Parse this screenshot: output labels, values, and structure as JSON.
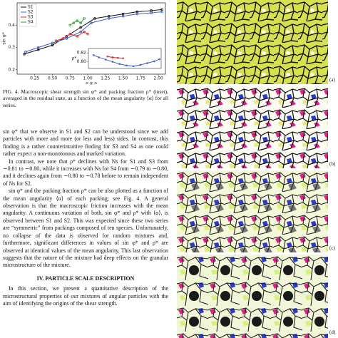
{
  "figure": {
    "chart": {
      "type": "line",
      "xlabel": "< α >",
      "ylabel": "sin φ*",
      "xlim": [
        0,
        2.1
      ],
      "ylim": [
        0.18,
        0.5
      ],
      "xticks": [
        0.25,
        {
          "value": 0.5,
          "label": "0.50"
        },
        0.75,
        {
          "value": 1,
          "label": "1.00"
        },
        1.25,
        {
          "value": 1.5,
          "label": "1.50"
        },
        1.75,
        {
          "value": 2,
          "label": "2.00"
        }
      ],
      "yticks": [
        0.2,
        0.3,
        0.4
      ],
      "series": [
        {
          "name": "S1",
          "color": "#111111",
          "x": [
            0.1,
            0.3,
            0.5,
            0.7,
            0.9,
            1.1,
            1.3,
            1.5,
            1.7,
            1.9,
            2.05
          ],
          "values": [
            0.27,
            0.29,
            0.31,
            0.35,
            0.39,
            0.43,
            0.44,
            0.45,
            0.46,
            0.465,
            0.47
          ]
        },
        {
          "name": "S2",
          "color": "#3b5fc9",
          "x": [
            0.12,
            0.3,
            0.5,
            0.7,
            0.9,
            1.05,
            1.3,
            1.5,
            1.7,
            1.9,
            2.05
          ],
          "values": [
            0.28,
            0.3,
            0.32,
            0.34,
            0.37,
            0.41,
            0.43,
            0.44,
            0.45,
            0.455,
            0.46
          ]
        },
        {
          "name": "S3",
          "color": "#d62728",
          "x": [
            0.55,
            0.65,
            0.75,
            0.85,
            0.95,
            1.0
          ],
          "values": [
            0.33,
            0.34,
            0.36,
            0.35,
            0.37,
            0.36
          ]
        },
        {
          "name": "S4",
          "color": "#2ca02c",
          "x": [
            0.75,
            0.8,
            0.85,
            0.9,
            0.95
          ],
          "values": [
            0.4,
            0.41,
            0.42,
            0.41,
            0.43
          ]
        }
      ],
      "inset": {
        "type": "line",
        "ylabel": "ρ*",
        "xlim": [
          0,
          2.1
        ],
        "ylim": [
          0.785,
          0.83
        ],
        "yticks": [
          {
            "value": 0.8,
            "label": "0.80"
          },
          0.82
        ],
        "series": [
          {
            "color": "#3b5fc9",
            "x": [
              0.15,
              0.3,
              0.5,
              0.7,
              0.9,
              1.1,
              1.3,
              1.5,
              1.7,
              1.9,
              2.05
            ],
            "values": [
              0.815,
              0.81,
              0.805,
              0.8,
              0.795,
              0.792,
              0.79,
              0.793,
              0.797,
              0.801,
              0.806
            ]
          },
          {
            "color": "#d62728",
            "x": [
              0.55,
              0.7,
              0.85,
              1.0
            ],
            "values": [
              0.812,
              0.81,
              0.809,
              0.808
            ]
          }
        ]
      }
    },
    "caption": "FIG. 4. Macroscopic shear strength sin φ* and packing fraction ρ* (inset), averaged in the residual state, as a function of the mean angularity ⟨α⟩ for all series."
  },
  "paragraphs": [
    "sin φ* that we observe in S1 and S2 can be understood since we add particles with more and more (or less and less) sides. In contrast, this finding is a rather counterintuitive finding for S3 and S4 as one could rather expect a non-monotonous and marked variation.",
    "In contrast, we note that ρ* declines with Ns for S1 and S3 from ∼0.81 to ∼0.80, while it increases with Ns for S4 from ∼0.79 to ∼0.80, and it declines again from ∼0.80 to ∼0.78 before to remain independent of Ns for S2.",
    "sin φ* and the packing fraction ρ* can be also plotted as a function of the mean angularity ⟨α⟩ of each packing; see Fig. 4. A general observation is that the macroscopic friction increases with the mean angularity. A continuous variation of both, sin φ* and ρ* with ⟨α⟩, is observed between S1 and S2. This was expected since these two series are “symmetric” from packings composed of ten species. Unfortunately, no collapse of the data is observed for random mixtures and, furthermore, significant differences in values of sin φ* and ρ* are observed at identical values of the mean angularity. This last observation suggests that the nature of the mixture had deep effects on the granular microstructure of the mixture."
  ],
  "section": {
    "title": "IV. PARTICLE SCALE DESCRIPTION",
    "text": "In this section, we present a quantitative description of the microstructural properties of our mixtures of angular particles with the aim of identifying the origins of the shear strength."
  },
  "panels": [
    "(a)",
    "(b)",
    "(c)",
    "(d)"
  ]
}
